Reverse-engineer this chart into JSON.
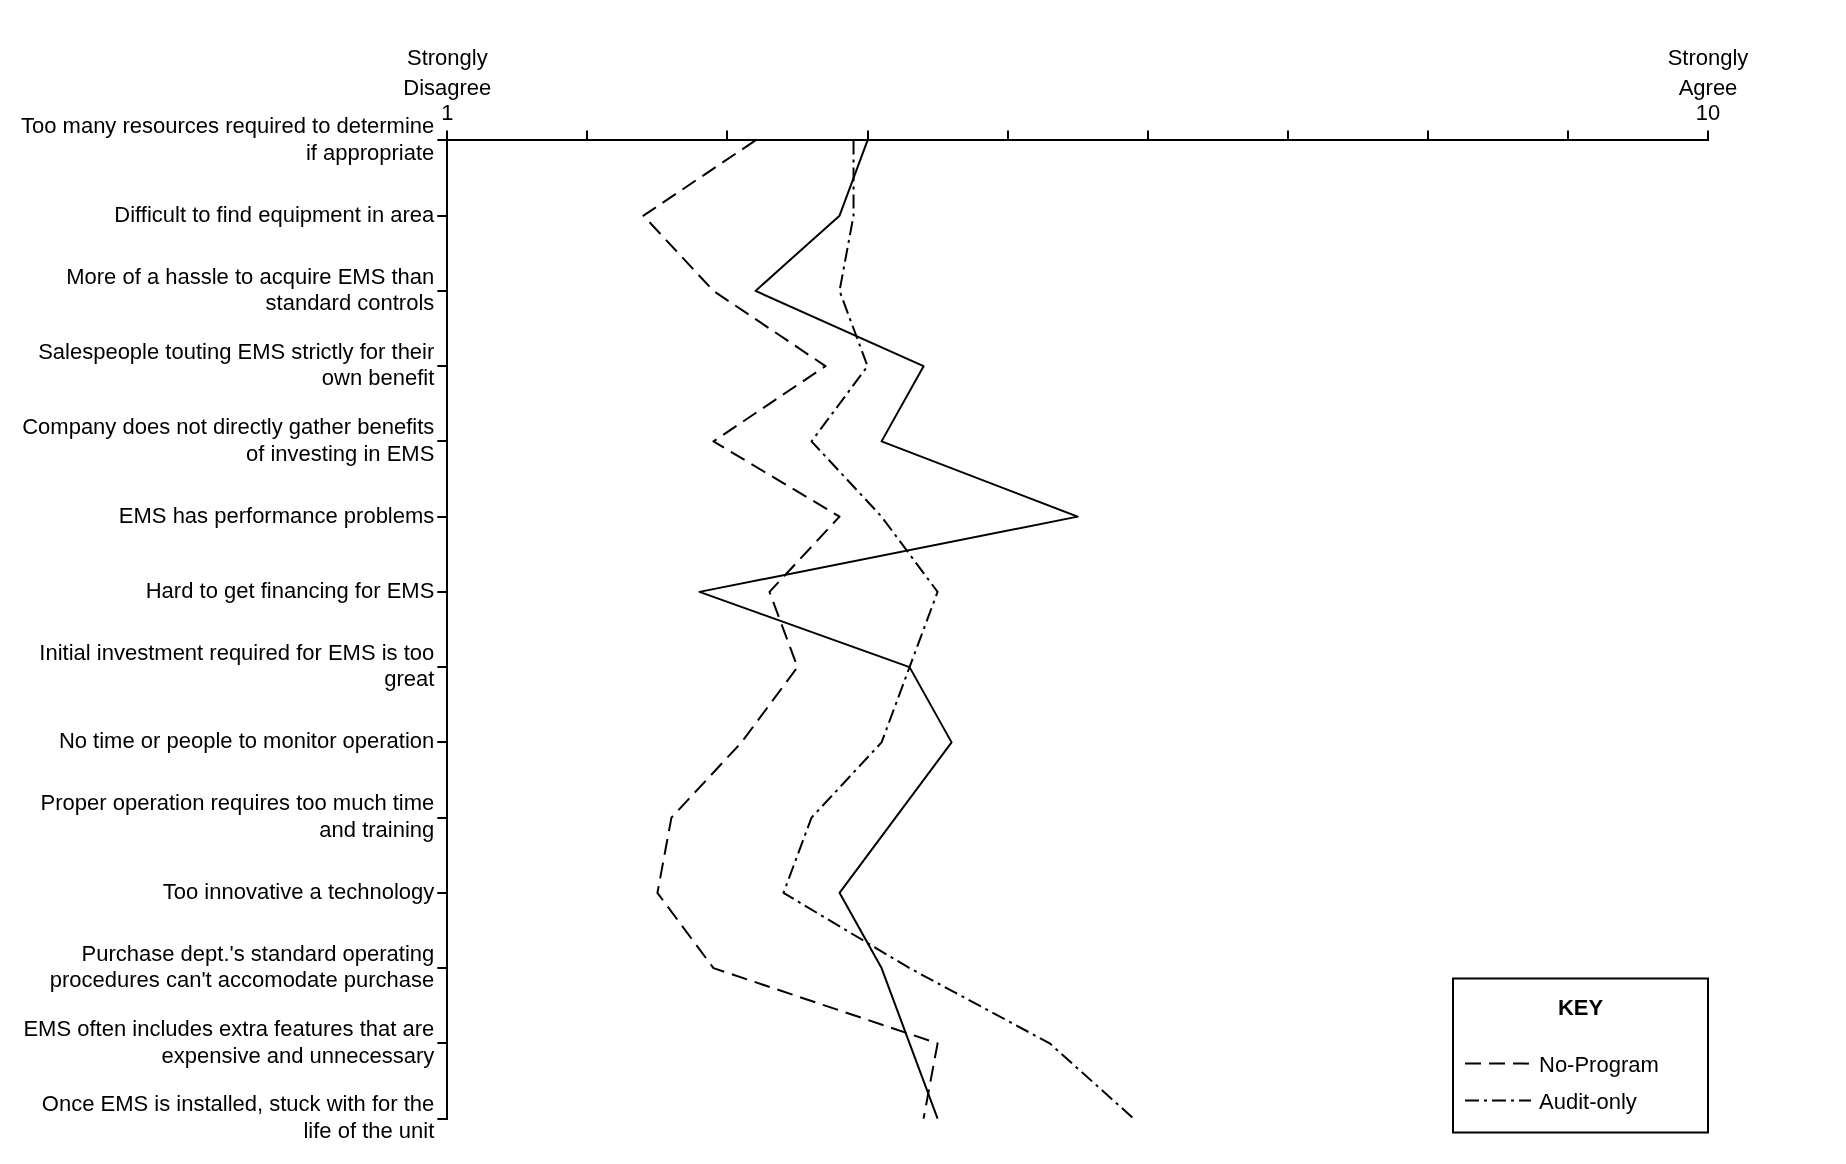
{
  "chart_data": {
    "type": "line",
    "orientation": "horizontal",
    "categories": [
      "Too many resources required to determine if appropriate",
      "Difficult to find equipment in area",
      "More of a hassle to acquire EMS than standard controls",
      "Salespeople touting EMS strictly for their own benefit",
      "Company does not directly gather benefits of investing in EMS",
      "EMS has performance problems",
      "Hard to get financing for EMS",
      "Initial investment required for EMS is too great",
      "No time or people to monitor operation",
      "Proper operation requires too much time and training",
      "Too innovative a technology",
      "Purchase dept.'s standard operating procedures can't accomodate purchase",
      "EMS often includes extra features that are expensive and unnecessary",
      "Once EMS is installed, stuck with for the life of the unit"
    ],
    "series": [
      {
        "color": "#000000",
        "line_style": "solid",
        "values": [
          4.0,
          3.8,
          3.2,
          4.4,
          4.1,
          5.5,
          2.8,
          4.3,
          4.6,
          4.2,
          3.8,
          4.1,
          4.3,
          4.5
        ]
      },
      {
        "name": "No-Program",
        "color": "#000000",
        "line_style": "dashed",
        "values": [
          3.2,
          2.4,
          2.9,
          3.7,
          2.9,
          3.8,
          3.3,
          3.5,
          3.1,
          2.6,
          2.5,
          2.9,
          4.5,
          4.4
        ]
      },
      {
        "name": "Audit-only",
        "color": "#000000",
        "line_style": "dashdot",
        "values": [
          3.9,
          3.9,
          3.8,
          4.0,
          3.6,
          4.1,
          4.5,
          4.3,
          4.1,
          3.6,
          3.4,
          4.3,
          5.3,
          5.9
        ]
      }
    ],
    "xlim": [
      1,
      10
    ],
    "xticks": [
      1,
      {
        "value": 2,
        "label": null
      },
      {
        "value": 3,
        "label": null
      },
      {
        "value": 4,
        "label": null
      },
      {
        "value": 5,
        "label": null
      },
      {
        "value": 6,
        "label": null
      },
      {
        "value": 7,
        "label": null
      },
      {
        "value": 8,
        "label": null
      },
      {
        "value": 9,
        "label": null
      },
      10
    ],
    "annotations": [
      "Strongly\nDisagree",
      "Strongly\nAgree"
    ],
    "legend": "bottom right",
    "legend_title": "KEY",
    "marker": "none",
    "grid": false
  }
}
